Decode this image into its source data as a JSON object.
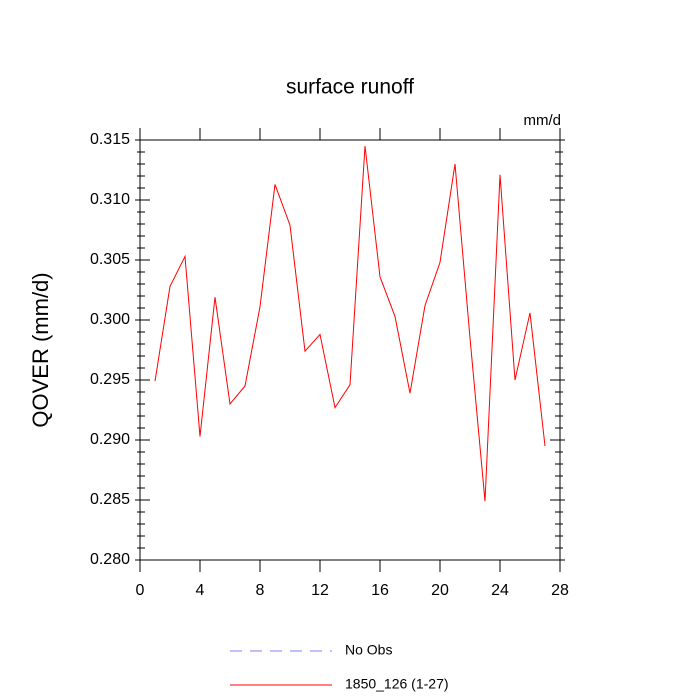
{
  "chart_data": {
    "type": "line",
    "title": "surface runoff",
    "units_label": "mm/d",
    "y_label": "QOVER  (mm/d)",
    "x": [
      1,
      2,
      3,
      4,
      5,
      6,
      7,
      8,
      9,
      10,
      11,
      12,
      13,
      14,
      15,
      16,
      17,
      18,
      19,
      20,
      21,
      22,
      23,
      24,
      25,
      26,
      27
    ],
    "series": [
      {
        "name": "No Obs",
        "color": "#8080ff",
        "dashed": true,
        "values": [
          null,
          null,
          null,
          null,
          null,
          null,
          null,
          null,
          null,
          null,
          null,
          null,
          null,
          null,
          null,
          null,
          null,
          null,
          null,
          null,
          null,
          null,
          null,
          null,
          null,
          null,
          null
        ]
      },
      {
        "name": "1850_126 (1-27)",
        "color": "#ff0000",
        "dashed": false,
        "values": [
          0.2949,
          0.3028,
          0.3053,
          0.2903,
          0.3019,
          0.293,
          0.2945,
          0.3011,
          0.3113,
          0.3079,
          0.2974,
          0.2988,
          0.2927,
          0.2946,
          0.3145,
          0.3036,
          0.3003,
          0.2939,
          0.3012,
          0.3048,
          0.313,
          0.2985,
          0.2849,
          0.3121,
          0.295,
          0.3006,
          0.2895
        ]
      }
    ],
    "xlim": [
      0,
      28
    ],
    "xticks": [
      0,
      4,
      8,
      12,
      16,
      20,
      24,
      28
    ],
    "ylim": [
      0.28,
      0.315
    ],
    "yticks": [
      {
        "value": 0.28,
        "label": "0.280"
      },
      0.285,
      {
        "value": 0.29,
        "label": "0.290"
      },
      0.295,
      {
        "value": 0.3,
        "label": "0.300"
      },
      0.305,
      {
        "value": 0.31,
        "label": "0.310"
      },
      0.315
    ],
    "grid": false
  }
}
